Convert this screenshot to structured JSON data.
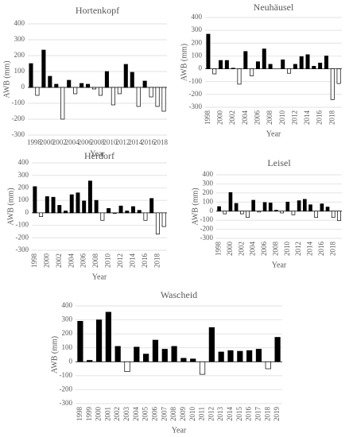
{
  "chart_data": [
    {
      "type": "bar",
      "title": "Hortenkopf",
      "x_label": "Year",
      "y_label": "AWB (mm)",
      "categories": [
        "1998",
        null,
        "2000",
        null,
        "2002",
        null,
        "2004",
        null,
        "2006",
        null,
        "2008",
        null,
        "2010",
        null,
        "2012",
        null,
        "2014",
        null,
        "2016",
        null,
        "2018",
        null
      ],
      "values": [
        150,
        -50,
        235,
        70,
        20,
        -200,
        45,
        -40,
        25,
        20,
        -10,
        -50,
        100,
        -110,
        -40,
        145,
        95,
        -120,
        40,
        -60,
        -120,
        -150
      ],
      "ylim": [
        -300,
        400
      ],
      "yticks": [
        -300,
        -200,
        -100,
        0,
        100,
        200,
        300,
        400
      ],
      "grid": true,
      "color": "#000000",
      "negative_color": "#ffffff"
    },
    {
      "type": "bar",
      "title": "Neuhäusel",
      "x_label": "Year",
      "y_label": "AWB (mm)",
      "categories": [
        "1998",
        null,
        "2000",
        null,
        "2002",
        null,
        "2004",
        null,
        "2006",
        null,
        "2008",
        null,
        "2010",
        null,
        "2012",
        null,
        "2014",
        null,
        "2016",
        null,
        "2018",
        null
      ],
      "values": [
        270,
        -40,
        65,
        65,
        5,
        -120,
        135,
        -55,
        55,
        155,
        35,
        0,
        70,
        -35,
        35,
        95,
        110,
        20,
        45,
        100,
        -240,
        -115
      ],
      "ylim": [
        -300,
        400
      ],
      "yticks": [
        -300,
        -200,
        -100,
        0,
        100,
        200,
        300,
        400
      ],
      "grid": true,
      "color": "#000000",
      "negative_color": "#ffffff"
    },
    {
      "type": "bar",
      "title": "Herdorf",
      "x_label": "Year",
      "y_label": "AWB (mm)",
      "categories": [
        "1998",
        null,
        "2000",
        null,
        "2002",
        null,
        "2004",
        null,
        "2006",
        null,
        "2008",
        null,
        "2010",
        null,
        "2012",
        null,
        "2014",
        null,
        "2016",
        null,
        "2018",
        null
      ],
      "values": [
        210,
        -30,
        130,
        125,
        60,
        15,
        145,
        160,
        95,
        255,
        100,
        -60,
        35,
        -5,
        55,
        15,
        50,
        20,
        -60,
        115,
        -170,
        -110
      ],
      "ylim": [
        -300,
        400
      ],
      "yticks": [
        -300,
        -200,
        -100,
        0,
        100,
        200,
        300,
        400
      ],
      "grid": true,
      "color": "#000000",
      "negative_color": "#ffffff"
    },
    {
      "type": "bar",
      "title": "Leisel",
      "x_label": "Year",
      "y_label": "AWB (mm)",
      "categories": [
        "1998",
        null,
        "2000",
        null,
        "2002",
        null,
        "2004",
        null,
        "2006",
        null,
        "2008",
        null,
        "2010",
        null,
        "2012",
        null,
        "2014",
        null,
        "2016",
        null,
        "2018",
        null
      ],
      "values": [
        50,
        -30,
        205,
        85,
        -30,
        -70,
        120,
        -10,
        95,
        90,
        10,
        -20,
        100,
        -40,
        115,
        130,
        70,
        -70,
        80,
        45,
        -70,
        -105
      ],
      "ylim": [
        -300,
        400
      ],
      "yticks": [
        -300,
        -200,
        -100,
        0,
        100,
        200,
        300,
        400
      ],
      "grid": true,
      "color": "#000000",
      "negative_color": "#ffffff"
    },
    {
      "type": "bar",
      "title": "Wascheid",
      "x_label": "Year",
      "y_label": "AWB (mm)",
      "categories": [
        "1998",
        "1999",
        "2000",
        "2001",
        "2002",
        "2003",
        "2004",
        "2005",
        "2006",
        "2007",
        "2008",
        "2009",
        "2010",
        "2011",
        "2012",
        "2013",
        "2014",
        "2015",
        "2016",
        "2017",
        "2018",
        "2019"
      ],
      "values": [
        290,
        10,
        300,
        355,
        110,
        -70,
        105,
        55,
        155,
        90,
        110,
        25,
        20,
        -90,
        245,
        70,
        80,
        75,
        80,
        90,
        -50,
        175
      ],
      "ylim": [
        -300,
        400
      ],
      "yticks": [
        -300,
        -200,
        -100,
        0,
        100,
        200,
        300,
        400
      ],
      "grid": true,
      "color": "#000000",
      "negative_color": "#ffffff"
    }
  ]
}
